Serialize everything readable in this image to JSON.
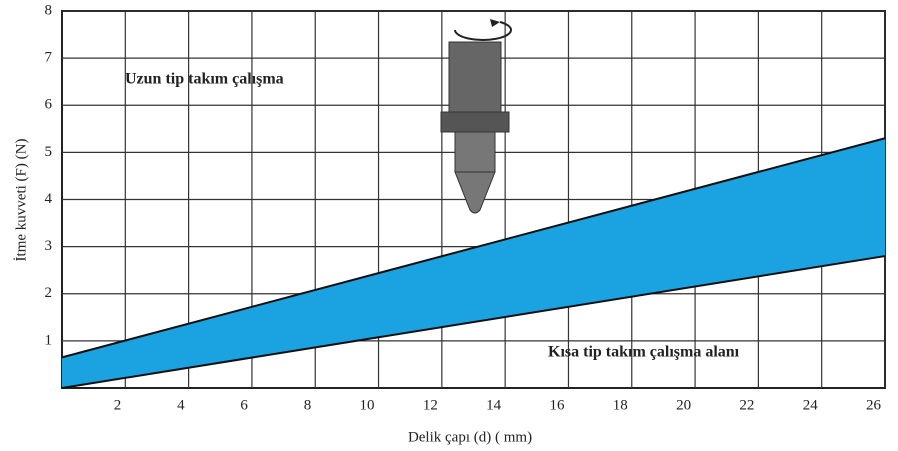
{
  "chart_data": {
    "type": "range_area",
    "y_label": "İtme kuvveti (F) (N)",
    "x_label": "Delik çapı (d) ( mm)",
    "annotations": [
      "Uzun tip takım çalışma",
      "Kısa tip takım çalışma alanı"
    ],
    "x": [
      0,
      26
    ],
    "upper": [
      0.65,
      5.3
    ],
    "lower": [
      0,
      2.8
    ],
    "color": "#1aa3e0",
    "xlim": [
      0,
      26
    ],
    "xticks": [
      2,
      4,
      6,
      8,
      10,
      12,
      14,
      16,
      18,
      20,
      22,
      24,
      26
    ],
    "ylim": [
      0,
      8
    ],
    "yticks": [
      1,
      2,
      3,
      4,
      5,
      6,
      7,
      8
    ],
    "grid": true
  }
}
